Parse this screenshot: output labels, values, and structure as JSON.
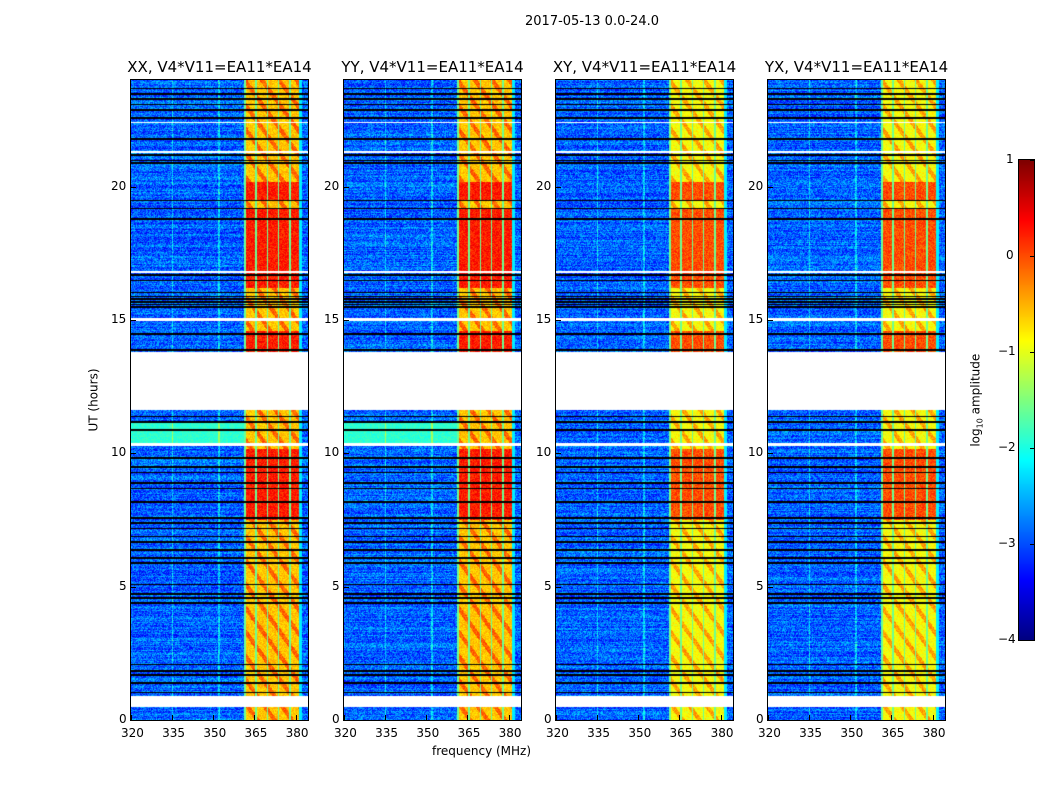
{
  "chart_data": {
    "type": "heatmap",
    "suptitle": "2017-05-13 0.0-24.0",
    "xlabel": "frequency (MHz)",
    "ylabel": "UT (hours)",
    "xlim": [
      320,
      384.5
    ],
    "ylim": [
      0,
      24
    ],
    "xticks": [
      320,
      335,
      350,
      365,
      380
    ],
    "yticks": [
      0,
      5,
      10,
      15,
      20
    ],
    "panels": [
      {
        "title": "XX, V4*V11=EA11*EA14",
        "band_level": -0.6,
        "peak_level": 0.25,
        "rfi_11h": true
      },
      {
        "title": "YY, V4*V11=EA11*EA14",
        "band_level": -0.6,
        "peak_level": 0.25,
        "rfi_11h": true
      },
      {
        "title": "XY, V4*V11=EA11*EA14",
        "band_level": -0.9,
        "peak_level": 0.0,
        "rfi_11h": false
      },
      {
        "title": "YX, V4*V11=EA11*EA14",
        "band_level": -0.9,
        "peak_level": 0.0,
        "rfi_11h": false
      }
    ],
    "background_level": -2.9,
    "band_mhz": [
      361,
      381
    ],
    "blank_hours": [
      [
        0.5,
        0.9
      ],
      [
        11.65,
        13.8
      ],
      [
        10.3,
        10.4
      ],
      [
        15.0,
        15.1
      ],
      [
        16.8,
        16.85
      ],
      [
        22.4,
        22.45
      ],
      [
        21.3,
        21.35
      ]
    ],
    "flagged_hours": [
      1.05,
      1.4,
      1.7,
      1.85,
      2.1,
      4.4,
      4.6,
      4.75,
      5.1,
      5.9,
      6.1,
      6.4,
      6.7,
      6.9,
      7.2,
      7.4,
      7.6,
      8.2,
      8.7,
      8.9,
      9.3,
      9.5,
      9.85,
      10.9,
      11.2,
      11.4,
      13.9,
      14.5,
      15.5,
      15.6,
      15.7,
      15.8,
      15.9,
      16.05,
      16.5,
      16.7,
      18.8,
      19.2,
      19.5,
      20.9,
      21.0,
      21.2,
      21.8,
      22.6,
      22.9,
      23.1,
      23.3,
      23.5,
      23.7
    ],
    "colorbar": {
      "label_prefix": "log",
      "label_sub": "10",
      "label_suffix": " amplitude",
      "range": [
        -4,
        1
      ],
      "ticks": [
        1,
        0,
        -1,
        -2,
        -3,
        -4
      ],
      "colormap": "jet"
    }
  }
}
